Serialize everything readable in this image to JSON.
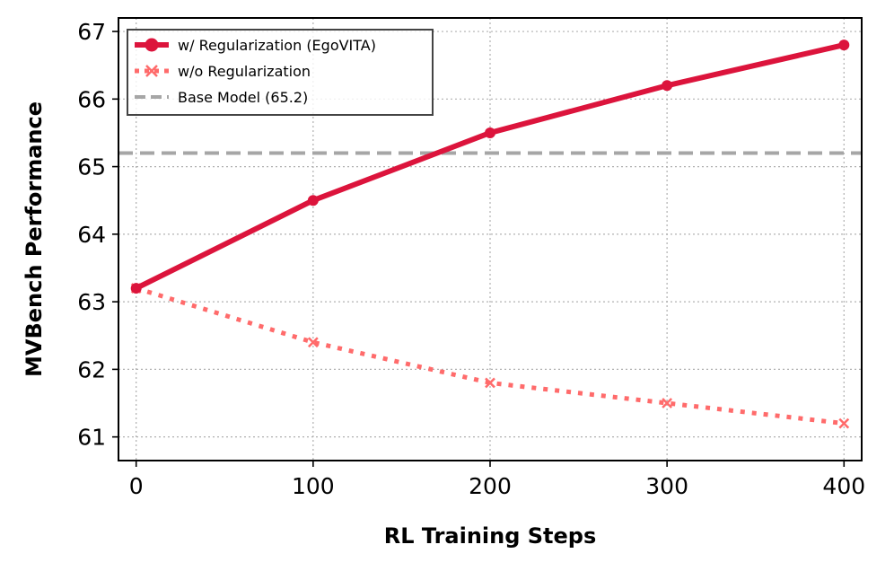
{
  "chart_data": {
    "type": "line",
    "title": "",
    "xlabel": "RL Training Steps",
    "ylabel": "MVBench Performance",
    "x": [
      0,
      100,
      200,
      300,
      400
    ],
    "xlim": [
      -10,
      410
    ],
    "ylim": [
      60.65,
      67.2
    ],
    "xticks": [
      0,
      100,
      200,
      300,
      400
    ],
    "yticks": [
      61,
      62,
      63,
      64,
      65,
      66,
      67
    ],
    "grid": true,
    "legend_position": "top-left",
    "series": [
      {
        "name": "w/ Regularization (EgoVITA)",
        "values": [
          63.2,
          64.5,
          65.5,
          66.2,
          66.8
        ],
        "color": "#dc143c",
        "style": "solid",
        "marker": "circle"
      },
      {
        "name": "w/o Regularization",
        "values": [
          63.2,
          62.4,
          61.8,
          61.5,
          61.2
        ],
        "color": "#ff6b6b",
        "style": "dotted",
        "marker": "x"
      }
    ],
    "reference_line": {
      "name": "Base Model (65.2)",
      "value": 65.2,
      "color": "#a6a6a6",
      "style": "dashed"
    }
  }
}
